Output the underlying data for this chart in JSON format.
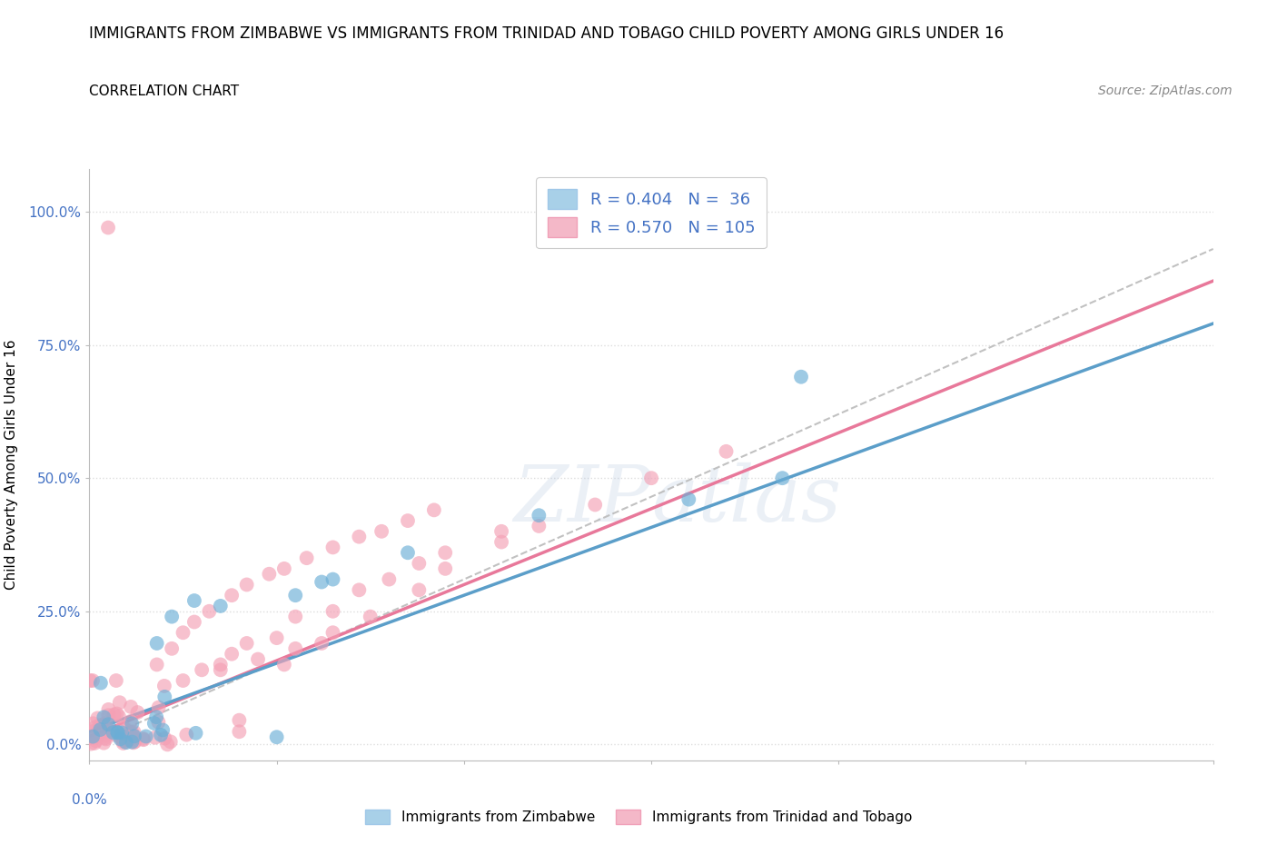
{
  "title": "IMMIGRANTS FROM ZIMBABWE VS IMMIGRANTS FROM TRINIDAD AND TOBAGO CHILD POVERTY AMONG GIRLS UNDER 16",
  "subtitle": "CORRELATION CHART",
  "source": "Source: ZipAtlas.com",
  "ylabel_label": "Child Poverty Among Girls Under 16",
  "watermark": "ZIPatlas",
  "blue_R": 0.404,
  "blue_N": 36,
  "pink_R": 0.57,
  "pink_N": 105,
  "xmin": 0.0,
  "xmax": 0.3,
  "ymin": -0.03,
  "ymax": 1.08,
  "blue_color": "#6BAED6",
  "pink_color": "#F4A0B5",
  "line_blue_color": "#5B9EC9",
  "line_pink_color": "#E8789A",
  "line_grey_color": "#BBBBBB",
  "background_color": "#FFFFFF",
  "grid_color": "#DDDDDD",
  "title_fontsize": 12,
  "subtitle_fontsize": 11,
  "tick_fontsize": 11,
  "ylabel_fontsize": 11,
  "source_fontsize": 10,
  "legend_blue_color": "#A8D0E8",
  "legend_pink_color": "#F4B8C8",
  "blue_line_intercept": 0.025,
  "blue_line_slope": 2.55,
  "pink_line_intercept": 0.015,
  "pink_line_slope": 2.85,
  "grey_line_intercept": 0.0,
  "grey_line_slope": 3.1
}
